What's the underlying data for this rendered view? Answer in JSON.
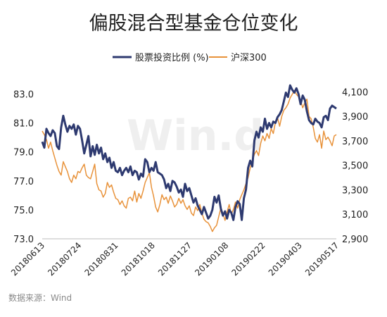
{
  "chart_data": {
    "type": "line",
    "title": "偏股混合型基金仓位变化",
    "watermark": "Win.d",
    "source": "数据来源：Wind",
    "x_ticks": [
      "20180613",
      "20180724",
      "20180831",
      "20181018",
      "20181127",
      "20190108",
      "20190222",
      "20190403",
      "20190517"
    ],
    "ylim_left": [
      73,
      84
    ],
    "yticks_left": [
      "73.0",
      "75.0",
      "77.0",
      "79.0",
      "81.0",
      "83.0"
    ],
    "ylim_right": [
      2900,
      4200
    ],
    "yticks_right": [
      "2,900",
      "3,100",
      "3,300",
      "3,500",
      "3,700",
      "3,900",
      "4,100"
    ],
    "legend_position": "top",
    "series": [
      {
        "name": "股票投资比例 (%)",
        "axis": "left",
        "color": "#2e3a70",
        "values": [
          79.7,
          79.3,
          80.6,
          80.3,
          80.1,
          80.5,
          80.3,
          79.4,
          79.2,
          80.7,
          81.5,
          80.9,
          80.4,
          80.8,
          80.6,
          80.9,
          80.2,
          80.8,
          80.6,
          79.8,
          78.9,
          79.5,
          80.1,
          78.7,
          79.4,
          78.8,
          79.5,
          78.9,
          79.3,
          78.5,
          78.9,
          78.3,
          78.6,
          77.9,
          78.3,
          77.7,
          77.6,
          77.9,
          77.4,
          77.7,
          77.9,
          77.6,
          78.0,
          77.4,
          77.7,
          77.6,
          77.1,
          77.5,
          77.3,
          78.5,
          78.3,
          77.6,
          77.9,
          77.7,
          78.3,
          77.6,
          77.5,
          77.4,
          77.1,
          76.5,
          76.8,
          76.3,
          77.0,
          76.9,
          76.6,
          76.2,
          76.4,
          75.9,
          76.8,
          76.3,
          76.5,
          76.0,
          75.5,
          75.8,
          75.3,
          75.0,
          74.7,
          75.2,
          74.8,
          74.4,
          74.6,
          75.0,
          75.9,
          75.5,
          76.0,
          75.1,
          74.6,
          74.9,
          74.4,
          75.0,
          74.8,
          74.3,
          75.2,
          75.6,
          75.4,
          74.3,
          75.8,
          76.4,
          77.9,
          78.4,
          78.0,
          79.8,
          80.4,
          80.0,
          80.7,
          80.4,
          81.3,
          80.6,
          81.0,
          80.7,
          81.1,
          81.0,
          81.4,
          81.6,
          81.9,
          82.5,
          83.1,
          82.8,
          83.6,
          83.3,
          83.1,
          83.4,
          83.0,
          82.3,
          82.9,
          82.6,
          81.8,
          81.2,
          81.0,
          80.9,
          81.3,
          81.1,
          81.0,
          80.7,
          81.4,
          81.5,
          81.2,
          82.0,
          82.2,
          82.1,
          82.0
        ]
      },
      {
        "name": "沪深300",
        "axis": "right",
        "color": "#e8923a",
        "values": [
          3780,
          3750,
          3710,
          3640,
          3690,
          3620,
          3560,
          3500,
          3450,
          3420,
          3530,
          3490,
          3450,
          3390,
          3360,
          3420,
          3390,
          3450,
          3440,
          3480,
          3510,
          3420,
          3400,
          3390,
          3450,
          3510,
          3350,
          3300,
          3290,
          3240,
          3270,
          3360,
          3320,
          3340,
          3280,
          3230,
          3220,
          3180,
          3210,
          3170,
          3150,
          3230,
          3240,
          3210,
          3290,
          3200,
          3270,
          3230,
          3290,
          3360,
          3400,
          3440,
          3320,
          3250,
          3160,
          3120,
          3180,
          3260,
          3220,
          3240,
          3190,
          3250,
          3210,
          3160,
          3180,
          3230,
          3190,
          3220,
          3170,
          3140,
          3170,
          3110,
          3090,
          3160,
          3130,
          3180,
          3110,
          3060,
          3040,
          3030,
          3000,
          2960,
          2990,
          3010,
          3080,
          3150,
          3110,
          3050,
          3120,
          3180,
          3100,
          3140,
          3200,
          3150,
          3220,
          3260,
          3300,
          3350,
          3400,
          3480,
          3540,
          3590,
          3620,
          3580,
          3680,
          3740,
          3700,
          3760,
          3720,
          3800,
          3760,
          3850,
          3890,
          3820,
          3900,
          3950,
          3970,
          4000,
          4050,
          4080,
          4110,
          4080,
          4060,
          4030,
          3970,
          4010,
          4040,
          3900,
          3880,
          3810,
          3720,
          3690,
          3750,
          3640,
          3780,
          3710,
          3730,
          3700,
          3660,
          3740,
          3750
        ]
      }
    ]
  }
}
